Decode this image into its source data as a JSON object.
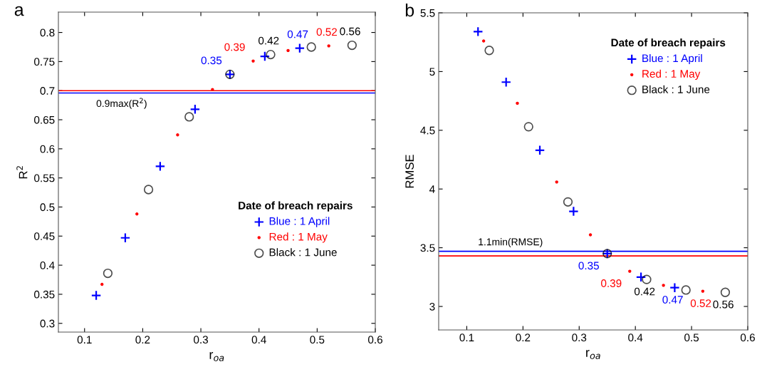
{
  "chart_data": [
    {
      "type": "scatter",
      "title": "a",
      "xlabel": "r$_{oa}$",
      "ylabel": "R$^{2}$",
      "legend_title": "Date of breach repairs",
      "legend": "bottom right",
      "xlim": [
        0.055,
        0.6
      ],
      "ylim": [
        0.285,
        0.835
      ],
      "xticks": [
        0.1,
        0.2,
        0.3,
        0.4,
        0.5,
        0.6
      ],
      "yticks": [
        0.3,
        0.35,
        0.4,
        0.45,
        0.5,
        0.55,
        0.6,
        0.65,
        0.7,
        0.75,
        0.8
      ],
      "series": [
        {
          "name": "Blue : 1 April",
          "color": "#0000ff",
          "marker": "cross",
          "x": [
            0.12,
            0.17,
            0.23,
            0.29,
            0.35,
            0.41,
            0.47
          ],
          "values": [
            0.348,
            0.447,
            0.57,
            0.668,
            0.728,
            0.759,
            0.773
          ]
        },
        {
          "name": "Red : 1 May",
          "color": "#ff0000",
          "marker": "circle",
          "x": [
            0.13,
            0.19,
            0.26,
            0.32,
            0.39,
            0.45,
            0.52
          ],
          "values": [
            0.367,
            0.488,
            0.624,
            0.702,
            0.751,
            0.769,
            0.777
          ]
        },
        {
          "name": "Black : 1 June",
          "color": "#000000",
          "marker": "circle",
          "x": [
            0.14,
            0.21,
            0.28,
            0.35,
            0.42,
            0.49,
            0.56
          ],
          "values": [
            0.386,
            0.53,
            0.655,
            0.728,
            0.762,
            0.775,
            0.778
          ]
        }
      ],
      "ref_lines": [
        {
          "axis": "y",
          "value": 0.696,
          "label": "0.9max(R$^{2}$)",
          "color": "#0000ff"
        },
        {
          "axis": "y",
          "value": 0.7,
          "label": null,
          "color": "#ff0000"
        }
      ],
      "annotations": [
        {
          "text": "0.35",
          "x": 0.35,
          "y": 0.728
        },
        {
          "text": "0.39",
          "x": 0.39,
          "y": 0.751
        },
        {
          "text": "0.42",
          "x": 0.42,
          "y": 0.762
        },
        {
          "text": "0.47",
          "x": 0.47,
          "y": 0.773
        },
        {
          "text": "0.52",
          "x": 0.52,
          "y": 0.777
        },
        {
          "text": "0.56",
          "x": 0.56,
          "y": 0.778
        }
      ]
    },
    {
      "type": "scatter",
      "title": "b",
      "xlabel": "r$_{oa}$",
      "ylabel": "RMSE",
      "legend_title": "Date of breach repairs",
      "legend": "top right",
      "xlim": [
        0.05,
        0.6
      ],
      "ylim": [
        2.8,
        5.5
      ],
      "xticks": [
        0.1,
        0.2,
        0.3,
        0.4,
        0.5,
        0.6
      ],
      "yticks": [
        3,
        3.5,
        4,
        4.5,
        5,
        5.5
      ],
      "series": [
        {
          "name": "Blue : 1 April",
          "color": "#0000ff",
          "marker": "cross",
          "x": [
            0.12,
            0.17,
            0.23,
            0.29,
            0.35,
            0.41,
            0.47
          ],
          "values": [
            5.34,
            4.91,
            4.33,
            3.81,
            3.45,
            3.25,
            3.16
          ]
        },
        {
          "name": "Red : 1 May",
          "color": "#ff0000",
          "marker": "circle",
          "x": [
            0.13,
            0.19,
            0.26,
            0.32,
            0.39,
            0.45,
            0.52
          ],
          "values": [
            5.26,
            4.73,
            4.06,
            3.61,
            3.3,
            3.18,
            3.13
          ]
        },
        {
          "name": "Black : 1 June",
          "color": "#000000",
          "marker": "circle",
          "x": [
            0.14,
            0.21,
            0.28,
            0.35,
            0.42,
            0.49,
            0.56
          ],
          "values": [
            5.18,
            4.53,
            3.89,
            3.45,
            3.23,
            3.14,
            3.12
          ]
        }
      ],
      "ref_lines": [
        {
          "axis": "y",
          "value": 3.47,
          "label": "1.1min(RMSE)",
          "color": "#0000ff"
        },
        {
          "axis": "y",
          "value": 3.43,
          "label": null,
          "color": "#ff0000"
        }
      ],
      "annotations": [
        {
          "text": "0.35",
          "x": 0.35,
          "y": 3.45
        },
        {
          "text": "0.39",
          "x": 0.39,
          "y": 3.3
        },
        {
          "text": "0.42",
          "x": 0.42,
          "y": 3.23
        },
        {
          "text": "0.47",
          "x": 0.47,
          "y": 3.16
        },
        {
          "text": "0.52",
          "x": 0.52,
          "y": 3.13
        },
        {
          "text": "0.56",
          "x": 0.56,
          "y": 3.12
        }
      ]
    }
  ]
}
